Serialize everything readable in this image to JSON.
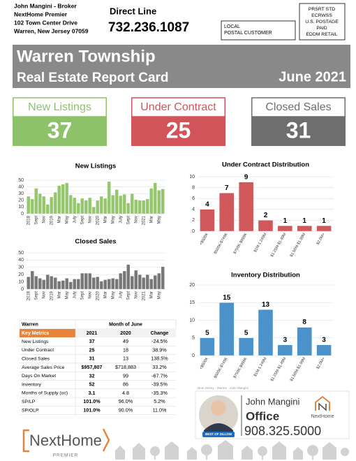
{
  "header": {
    "broker": "John Mangini - Broker",
    "company": "NextHome Premier",
    "street": "102 Town Center Drive",
    "city": "Warren, New Jersey 07059",
    "direct_label": "Direct Line",
    "direct_phone": "732.236.1087",
    "recipient": [
      "LOCAL",
      "POSTAL CUSTOMER"
    ],
    "postage": [
      "PRSRT STD",
      "ECRWSS",
      "U.S. POSTAGE",
      "PAID",
      "EDDM RETAIL"
    ]
  },
  "banner": {
    "title": "Warren Township",
    "subtitle": "Real Estate Report Card",
    "date": "June 2021"
  },
  "cards": [
    {
      "label": "New Listings",
      "value": 37,
      "color": "#8dc26a"
    },
    {
      "label": "Under Contract",
      "value": 25,
      "color": "#d0545a"
    },
    {
      "label": "Closed Sales",
      "value": 31,
      "color": "#6e6e6e"
    }
  ],
  "chart_data": [
    {
      "type": "bar",
      "title": "New Listings",
      "color": "#93c66d",
      "grid": true,
      "categories": [
        "2018",
        null,
        "Sept",
        null,
        "Nov",
        null,
        "2019",
        null,
        "Mar",
        null,
        "May",
        null,
        "July",
        null,
        "Sept",
        null,
        "Nov",
        null,
        "2020",
        null,
        "Mar",
        null,
        "May",
        null,
        "July",
        null,
        "Sept",
        null,
        "Nov",
        null,
        "2021",
        null,
        "Mar",
        null,
        "May",
        null
      ],
      "values": [
        26,
        22,
        38,
        30,
        26,
        14,
        25,
        32,
        42,
        44,
        46,
        28,
        24,
        16,
        23,
        20,
        24,
        10,
        20,
        26,
        23,
        48,
        28,
        36,
        27,
        29,
        16,
        30,
        21,
        20,
        20,
        22,
        38,
        46,
        35,
        37
      ],
      "ylim": [
        0,
        50
      ],
      "yticks": [
        0,
        10,
        20,
        30,
        40,
        50
      ]
    },
    {
      "type": "bar",
      "title": "Closed Sales",
      "color": "#777777",
      "grid": true,
      "categories": [
        "2018",
        null,
        "Sept",
        null,
        "Nov",
        null,
        "2019",
        null,
        "Mar",
        null,
        "May",
        null,
        "July",
        null,
        "Sept",
        null,
        "Nov",
        null,
        "2020",
        null,
        "Mar",
        null,
        "May",
        null,
        "July",
        null,
        "Sept",
        null,
        "Nov",
        null,
        "2021",
        null,
        "Mar",
        null,
        "May",
        null
      ],
      "values": [
        17,
        25,
        18,
        15,
        13,
        20,
        18,
        16,
        11,
        12,
        15,
        10,
        14,
        14,
        22,
        22,
        22,
        16,
        17,
        11,
        13,
        14,
        15,
        14,
        22,
        25,
        34,
        18,
        26,
        20,
        16,
        20,
        14,
        19,
        22,
        31
      ],
      "ylim": [
        0,
        50
      ],
      "yticks": [
        0,
        10,
        20,
        30,
        40,
        50
      ]
    },
    {
      "type": "bar",
      "title": "Under Contract Distribution",
      "color": "#d0585a",
      "grid": true,
      "data_labels": true,
      "categories": [
        "<$500K",
        "$500K-$749K",
        "$750K-$999K",
        "$1M-1.249M",
        "$1.25M-$1.49M",
        "$1.50M-$1.99M",
        "$2.0M+"
      ],
      "values": [
        4,
        7,
        9,
        2,
        1,
        1,
        1
      ],
      "ylim": [
        0,
        10
      ],
      "yticks": [
        0,
        2,
        4,
        6,
        8,
        10
      ]
    },
    {
      "type": "bar",
      "title": "Inventory Distribution",
      "color": "#4a92c9",
      "grid": true,
      "data_labels": true,
      "categories": [
        "<$500K",
        "$500K-$749K",
        "$750K-$999K",
        "$1M-1.249M",
        "$1.25M-$1.49M",
        "$1.50M-$1.99M",
        "$2.0M+"
      ],
      "values": [
        5,
        15,
        5,
        13,
        3,
        8,
        3
      ],
      "ylim": [
        0,
        20
      ],
      "yticks": [
        0,
        5,
        10,
        15,
        20
      ]
    }
  ],
  "table": {
    "title": "Warren",
    "subtitle": "Month of June",
    "header": [
      "Key Metrics",
      "2021",
      "2020",
      "Change"
    ],
    "rows": [
      [
        "New Listings",
        "37",
        "49",
        "-24.5%"
      ],
      [
        "Under Contract",
        "25",
        "18",
        "38.9%"
      ],
      [
        "Closed Sales",
        "31",
        "13",
        "138.5%"
      ],
      [
        "Average Sales Price",
        "$957,807",
        "$718,883",
        "33.2%"
      ],
      [
        "Days On Market",
        "32",
        "99",
        "-67.7%"
      ],
      [
        "Inventory",
        "52",
        "86",
        "-39.5%"
      ],
      [
        "Months of Supply (uc)",
        "3.1",
        "4.8",
        "-35.3%"
      ],
      [
        "SP/LP",
        "101.0%",
        "96.0%",
        "5.2%"
      ],
      [
        "SP/OLP",
        "101.0%",
        "90.0%",
        "11.0%"
      ]
    ]
  },
  "agent": {
    "caption": "New Jersey · Warren · John Mangini",
    "name": "John Mangini",
    "office_label": "Office",
    "phone": "908.325.5000",
    "brand": "NextHome",
    "badge": "BEST OF ZILLOW"
  },
  "footer": {
    "brand": "NextHome",
    "sub": "PREMIER"
  }
}
